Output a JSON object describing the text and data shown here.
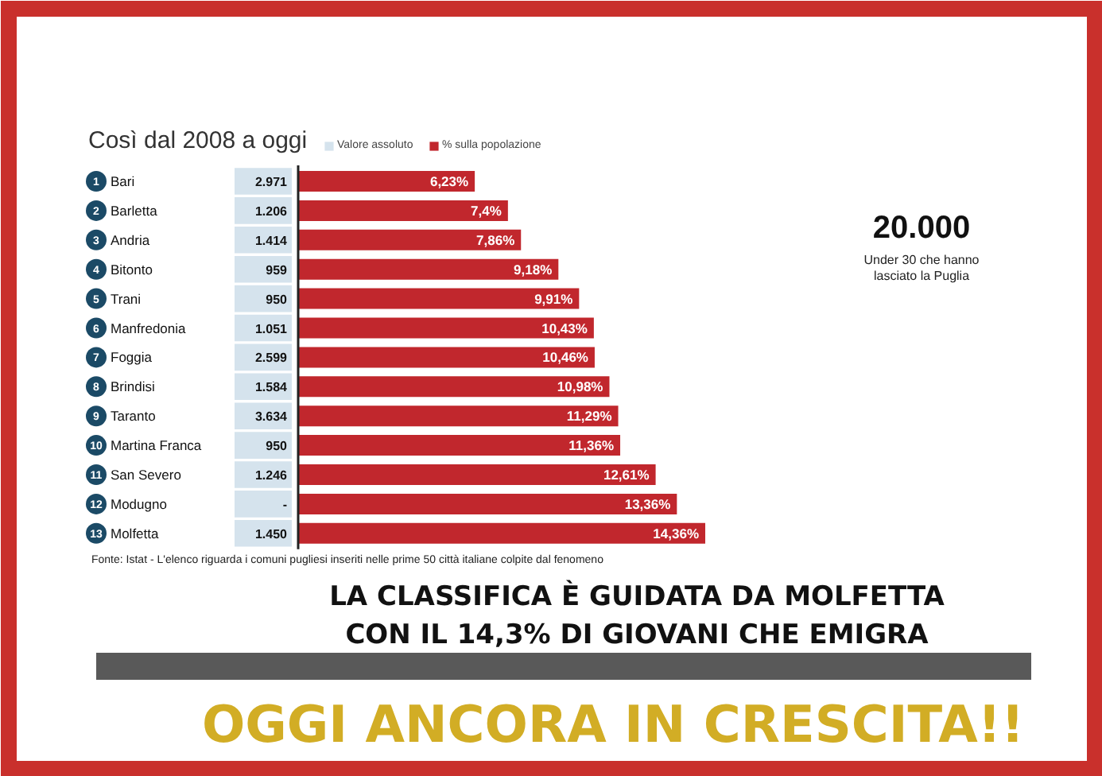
{
  "chart_data": [
    {
      "type": "bar",
      "orientation": "horizontal",
      "title": "Così dal 2008 a oggi",
      "categories": [
        "1 Bari",
        "2 Barletta",
        "3 Andria",
        "4 Bitonto",
        "5 Trani",
        "6 Manfredonia",
        "7 Foggia",
        "8 Brindisi",
        "9 Taranto",
        "10 Martina Franca",
        "11 San Severo",
        "12 Modugno",
        "13 Molfetta"
      ],
      "tick_labels": "y",
      "series": [
        {
          "name": "% sulla popolazione",
          "color": "#c1272d",
          "values": [
            6.23,
            7.4,
            7.86,
            9.18,
            9.91,
            10.43,
            10.46,
            10.98,
            11.29,
            11.36,
            12.61,
            13.36,
            14.36
          ],
          "value_labels": [
            "6,23%",
            "7,4%",
            "7,86%",
            "9,18%",
            "9,91%",
            "10,43%",
            "10,46%",
            "10,98%",
            "11,29%",
            "11,36%",
            "12,61%",
            "13,36%",
            "14,36%"
          ]
        }
      ],
      "legend": "top",
      "annotations": [
        "Fonte: Istat - L'elenco riguarda i comuni pugliesi inseriti nelle prime 50 città italiane colpite dal fenomeno",
        "20.000",
        "Under 30 che hanno lasciato la Puglia",
        "LA CLASSIFICA È GUIDATA DA MOLFETTA CON IL 14,3% DI GIOVANI CHE EMIGRA",
        "OGGI ANCORA IN CRESCITA!!"
      ]
    },
    {
      "type": "other",
      "series": [
        {
          "name": "Valore assoluto",
          "color": "#d5e3ed",
          "values": [
            2971,
            1206,
            1414,
            959,
            950,
            1051,
            2599,
            1584,
            3634,
            950,
            1246,
            null,
            1450
          ],
          "value_labels": [
            "2.971",
            "1.206",
            "1.414",
            "959",
            "950",
            "1.051",
            "2.599",
            "1.584",
            "3.634",
            "950",
            "1.246",
            "-",
            "1.450"
          ]
        }
      ],
      "legend": "top"
    }
  ]
}
